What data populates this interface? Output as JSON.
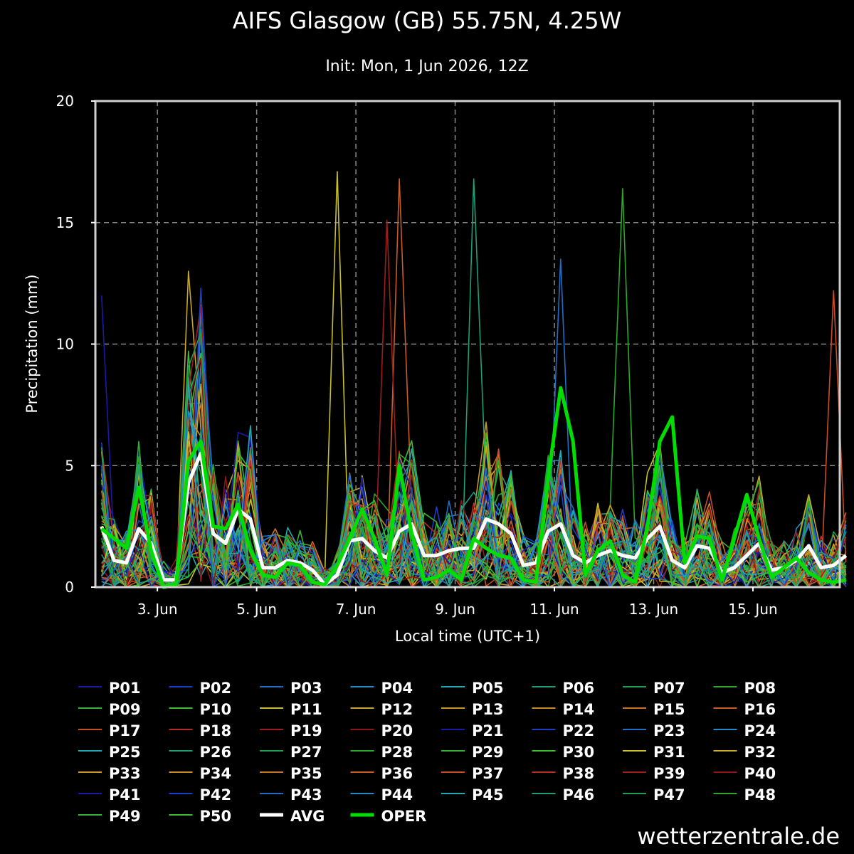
{
  "chart_data": {
    "type": "line",
    "title": "AIFS Glasgow (GB) 55.75N, 4.25W",
    "subtitle": "Init: Mon, 1 Jun 2026, 12Z",
    "xlabel": "Local time (UTC+1)",
    "ylabel": "Precipitation (mm)",
    "ylim": [
      0,
      20
    ],
    "yticks": [
      "0",
      "5",
      "10",
      "15",
      "20"
    ],
    "xlim_days": [
      1.75,
      16.75
    ],
    "xticks": [
      {
        "day": 3,
        "label": "3. Jun"
      },
      {
        "day": 5,
        "label": "5. Jun"
      },
      {
        "day": 7,
        "label": "7. Jun"
      },
      {
        "day": 9,
        "label": "9. Jun"
      },
      {
        "day": 11,
        "label": "11. Jun"
      },
      {
        "day": 13,
        "label": "13. Jun"
      },
      {
        "day": 15,
        "label": "15. Jun"
      }
    ],
    "grid": true,
    "legend_position": "bottom",
    "time_start_day": 1.875,
    "time_step_days": 0.25,
    "member_colors": [
      "#1a1aa8",
      "#1a3ec8",
      "#1e6ec8",
      "#1e8cc8",
      "#20a8b4",
      "#1e9e78",
      "#1e9e50",
      "#2aa82a",
      "#36b036",
      "#3cbc30",
      "#c8c024",
      "#c8a824",
      "#c89824",
      "#c88c24",
      "#c87424",
      "#c85c24",
      "#c84c24",
      "#b82c24",
      "#a01c1c",
      "#8c1414"
    ],
    "avg": {
      "name": "AVG",
      "color": "#ffffff",
      "values": [
        2.5,
        1.1,
        1.0,
        2.4,
        1.8,
        0.3,
        0.3,
        4.3,
        5.5,
        2.2,
        1.8,
        3.2,
        2.8,
        0.8,
        0.8,
        1.1,
        1.0,
        0.7,
        0.1,
        0.5,
        1.9,
        2.0,
        1.5,
        1.2,
        2.3,
        2.6,
        1.3,
        1.3,
        1.5,
        1.6,
        1.6,
        2.8,
        2.6,
        2.2,
        0.9,
        1.0,
        2.3,
        2.6,
        1.3,
        1.0,
        1.3,
        1.5,
        1.3,
        1.2,
        2.0,
        2.5,
        1.1,
        0.8,
        1.7,
        1.6,
        0.6,
        0.8,
        1.3,
        1.8,
        0.7,
        0.8,
        1.1,
        1.7,
        0.8,
        0.9,
        1.3
      ]
    },
    "oper": {
      "name": "OPER",
      "color": "#00dd00",
      "values": [
        2.4,
        2.0,
        1.6,
        4.1,
        1.5,
        0.0,
        0.1,
        5.2,
        6.0,
        2.5,
        2.4,
        3.4,
        1.5,
        0.5,
        0.4,
        1.0,
        0.9,
        0.2,
        0.1,
        0.9,
        2.0,
        3.2,
        2.0,
        0.5,
        5.0,
        2.2,
        0.3,
        0.4,
        0.7,
        0.3,
        2.0,
        1.6,
        1.3,
        1.2,
        0.3,
        0.2,
        4.5,
        8.2,
        6.0,
        0.5,
        1.5,
        1.9,
        0.5,
        0.2,
        2.5,
        6.0,
        7.0,
        1.0,
        2.1,
        2.0,
        0.3,
        2.0,
        3.8,
        2.0,
        0.4,
        0.8,
        1.2,
        0.6,
        0.3,
        0.2,
        0.3
      ]
    },
    "legend": [
      "P01",
      "P02",
      "P03",
      "P04",
      "P05",
      "P06",
      "P07",
      "P08",
      "P09",
      "P10",
      "P11",
      "P12",
      "P13",
      "P14",
      "P15",
      "P16",
      "P17",
      "P18",
      "P19",
      "P20",
      "P21",
      "P22",
      "P23",
      "P24",
      "P25",
      "P26",
      "P27",
      "P28",
      "P29",
      "P30",
      "P31",
      "P32",
      "P33",
      "P34",
      "P35",
      "P36",
      "P37",
      "P38",
      "P39",
      "P40",
      "P41",
      "P42",
      "P43",
      "P44",
      "P45",
      "P46",
      "P47",
      "P48",
      "P49",
      "P50",
      "AVG",
      "OPER"
    ],
    "member_peaks": [
      {
        "member": "P01",
        "x_day": 1.875,
        "y": 12.0
      },
      {
        "member": "P11",
        "x_day": 6.625,
        "y": 17.1
      },
      {
        "member": "P12",
        "x_day": 3.5,
        "y": 13.0
      },
      {
        "member": "P16",
        "x_day": 7.875,
        "y": 16.8
      },
      {
        "member": "P19",
        "x_day": 7.5,
        "y": 15.1
      },
      {
        "member": "P06",
        "x_day": 9.375,
        "y": 16.8
      },
      {
        "member": "P23",
        "x_day": 11.0,
        "y": 13.5
      },
      {
        "member": "P08",
        "x_day": 12.375,
        "y": 16.4
      },
      {
        "member": "P07",
        "x_day": 3.75,
        "y": 11.6
      },
      {
        "member": "P37",
        "x_day": 16.625,
        "y": 12.2
      }
    ]
  },
  "brand": "wetterzentrale.de"
}
